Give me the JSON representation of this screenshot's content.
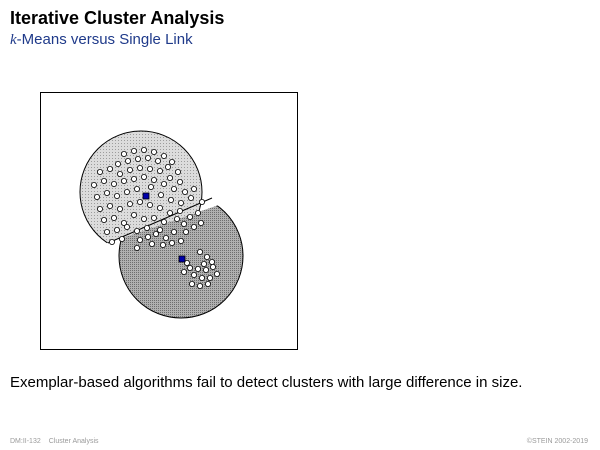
{
  "slide": {
    "title": "Iterative Cluster Analysis",
    "subtitle_k": "k",
    "subtitle_rest": "-Means versus Single Link",
    "caption": "Exemplar-based algorithms fail to detect clusters with large difference in size."
  },
  "footer": {
    "page": "DM:II-132",
    "section": "Cluster Analysis",
    "copyright": "©STEIN 2002-2019"
  },
  "colors": {
    "title": "#000000",
    "subtitle": "#1f3a8a",
    "cluster_light": "#d9d9d9",
    "cluster_dark": "#a9a9a9",
    "centroid": "#0000aa",
    "footer": "#9a9a9a"
  }
}
